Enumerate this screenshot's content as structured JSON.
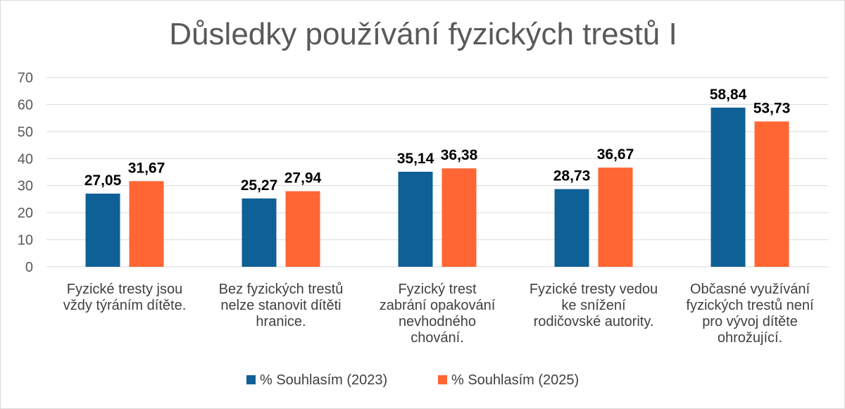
{
  "chart_data": {
    "type": "bar",
    "title": "Důsledky používání fyzických trestů I",
    "xlabel": "",
    "ylabel": "",
    "ylim": [
      0,
      70
    ],
    "yticks": [
      0,
      10,
      20,
      30,
      40,
      50,
      60,
      70
    ],
    "grid": true,
    "legend_position": "bottom",
    "categories": [
      [
        "Fyzické tresty jsou",
        "vždy týráním dítěte."
      ],
      [
        "Bez fyzických trestů",
        "nelze stanovit dítěti",
        "hranice."
      ],
      [
        "Fyzický trest",
        "zabrání opakování",
        "nevhodného",
        "chování."
      ],
      [
        "Fyzické tresty vedou",
        "ke snížení",
        "rodičovské autority."
      ],
      [
        "Občasné využívání",
        "fyzických trestů není",
        "pro vývoj dítěte",
        "ohrožující."
      ]
    ],
    "series": [
      {
        "name": "% Souhlasím (2023)",
        "color": "#0f6096",
        "values": [
          27.05,
          25.27,
          35.14,
          28.73,
          58.84
        ],
        "labels": [
          "27,05",
          "25,27",
          "35,14",
          "28,73",
          "58,84"
        ]
      },
      {
        "name": "% Souhlasím (2025)",
        "color": "#ff6633",
        "values": [
          31.67,
          27.94,
          36.38,
          36.67,
          53.73
        ],
        "labels": [
          "31,67",
          "27,94",
          "36,38",
          "36,67",
          "53,73"
        ]
      }
    ]
  }
}
